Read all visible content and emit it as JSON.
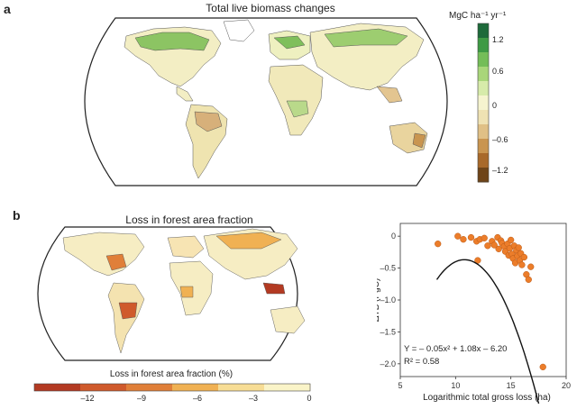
{
  "panel_a": {
    "letter": "a",
    "title": "Total live biomass changes",
    "colorbar": {
      "unit": "MgC ha⁻¹ yr⁻¹",
      "tick_labels": [
        "1.2",
        "0.6",
        "0",
        "–0.6",
        "–1.2"
      ],
      "colors": [
        "#1d6a3a",
        "#3e9a44",
        "#74bd58",
        "#a9d67a",
        "#d7ebaa",
        "#f6f4cf",
        "#efe2b3",
        "#e0c086",
        "#c99550",
        "#a8692a",
        "#6e4418"
      ]
    }
  },
  "panel_b": {
    "letter": "b",
    "title": "Loss in forest area fraction",
    "colorbar": {
      "label": "Loss in forest area fraction (%)",
      "tick_labels": [
        "–12",
        "–9",
        "–6",
        "–3",
        "0"
      ],
      "colors": [
        "#b33a22",
        "#cf5a2c",
        "#e07f39",
        "#f0b153",
        "#f7dd95",
        "#faf4c8"
      ]
    }
  },
  "chart_data": {
    "type": "scatter",
    "xlabel": "Logarithmic total gross loss (ha)",
    "ylabel": "ΔTB (PgC)",
    "xlim": [
      5,
      20
    ],
    "ylim": [
      -2.2,
      0.2
    ],
    "xticks": [
      "5",
      "10",
      "15",
      "20"
    ],
    "yticks": [
      "0",
      "–0.5",
      "–1.0",
      "–1.5",
      "–2.0"
    ],
    "equation": "Y = – 0.05x² + 1.08x – 6.20",
    "r2": "R² = 0.58",
    "point_color": "#ec7d2a",
    "fit_curve": {
      "a": -0.05,
      "b": 1.08,
      "c": -6.2,
      "x_range": [
        8.3,
        18
      ]
    },
    "points": [
      [
        8.4,
        -0.12
      ],
      [
        10.2,
        0.0
      ],
      [
        10.7,
        -0.05
      ],
      [
        11.4,
        -0.02
      ],
      [
        11.9,
        -0.08
      ],
      [
        12.2,
        -0.05
      ],
      [
        12.6,
        -0.03
      ],
      [
        12.9,
        -0.15
      ],
      [
        13.3,
        -0.08
      ],
      [
        13.5,
        -0.14
      ],
      [
        13.8,
        -0.02
      ],
      [
        13.9,
        -0.2
      ],
      [
        14.1,
        -0.07
      ],
      [
        14.2,
        -0.11
      ],
      [
        14.4,
        -0.16
      ],
      [
        14.5,
        -0.24
      ],
      [
        14.7,
        -0.12
      ],
      [
        14.8,
        -0.3
      ],
      [
        14.9,
        -0.19
      ],
      [
        15.0,
        -0.06
      ],
      [
        15.1,
        -0.28
      ],
      [
        15.2,
        -0.35
      ],
      [
        15.3,
        -0.15
      ],
      [
        15.4,
        -0.42
      ],
      [
        15.5,
        -0.22
      ],
      [
        15.6,
        -0.31
      ],
      [
        15.7,
        -0.18
      ],
      [
        15.8,
        -0.38
      ],
      [
        15.9,
        -0.27
      ],
      [
        16.0,
        -0.45
      ],
      [
        16.2,
        -0.33
      ],
      [
        16.4,
        -0.6
      ],
      [
        16.6,
        -0.68
      ],
      [
        16.8,
        -0.48
      ],
      [
        12.0,
        -0.38
      ],
      [
        17.9,
        -2.05
      ]
    ]
  }
}
